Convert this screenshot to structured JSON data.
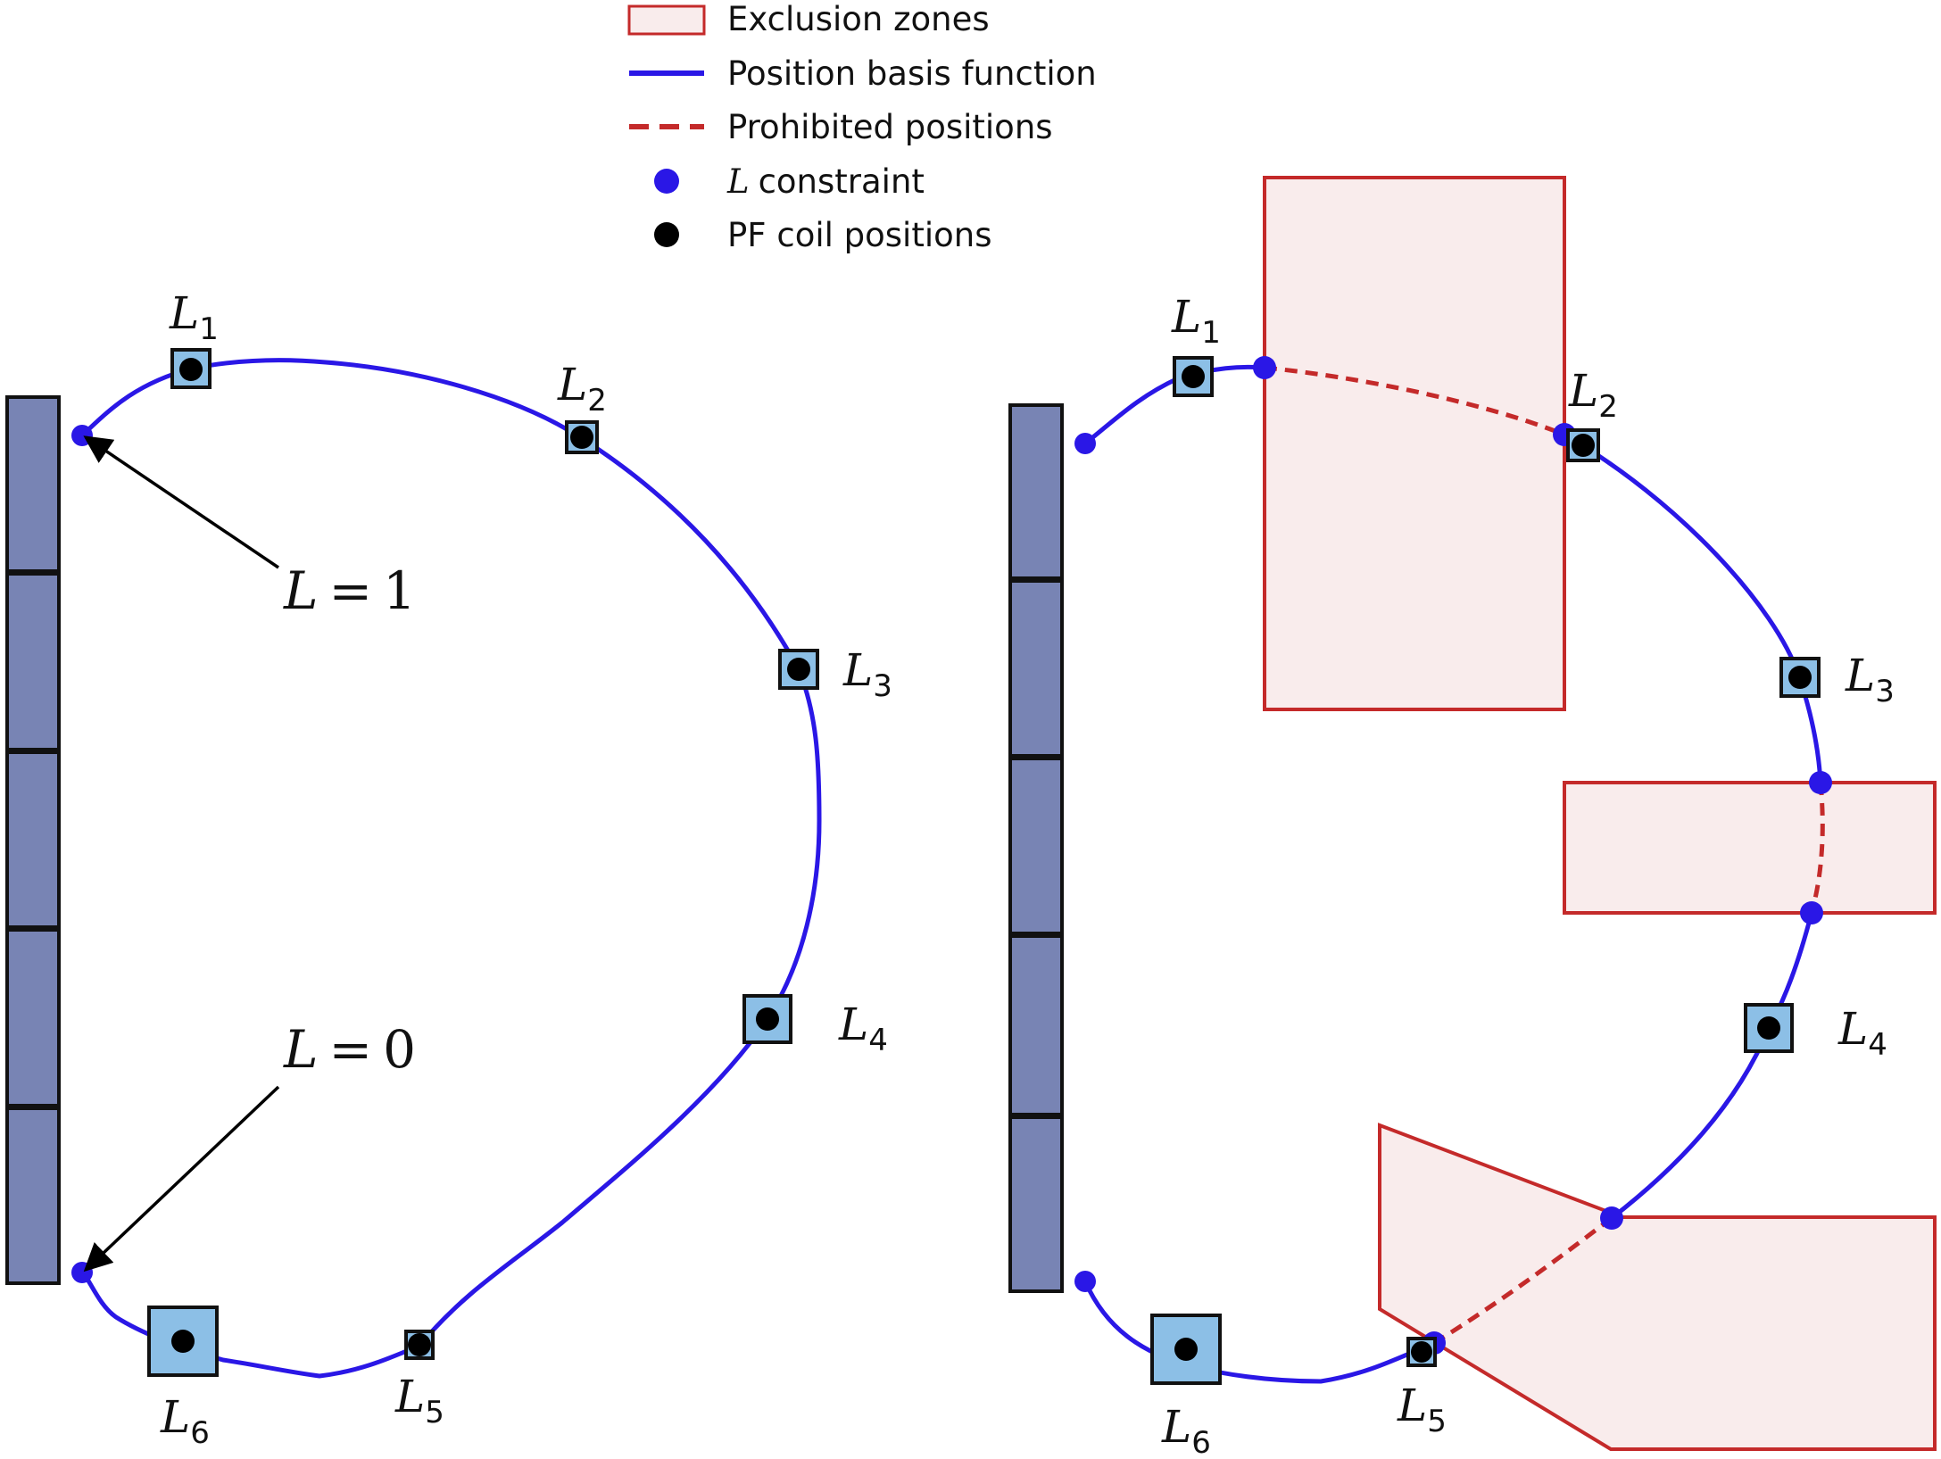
{
  "legend": {
    "items": [
      {
        "label": "Exclusion zones",
        "kind": "zone",
        "color": "#c42a2a",
        "fill": "#f9ecec"
      },
      {
        "label": "Position basis function",
        "kind": "line",
        "color": "#2a17e6"
      },
      {
        "label": "Prohibited positions",
        "kind": "dashed",
        "color": "#c42a2a"
      },
      {
        "label": "constraint",
        "prefix": "L",
        "kind": "blue-dot",
        "color": "#2a17e6"
      },
      {
        "label": "PF coil positions",
        "kind": "black-dot",
        "color": "#000000"
      }
    ]
  },
  "colors": {
    "curve": "#2a17e6",
    "prohibited": "#c42a2a",
    "zone_fill": "#f9ecec",
    "zone_stroke": "#c42a2a",
    "coil_fill": "#8cbfe6",
    "solenoid_fill": "#7884b4"
  },
  "coil_labels": {
    "symbol": "L",
    "subs": [
      "1",
      "2",
      "3",
      "4",
      "5",
      "6"
    ]
  },
  "annotations": {
    "l_one": {
      "sym": "L",
      "eq": "=",
      "val": "1"
    },
    "l_zero": {
      "sym": "L",
      "eq": "=",
      "val": "0"
    }
  },
  "icons": {
    "arrow": "arrow-icon",
    "coil": "square-coil-icon"
  }
}
